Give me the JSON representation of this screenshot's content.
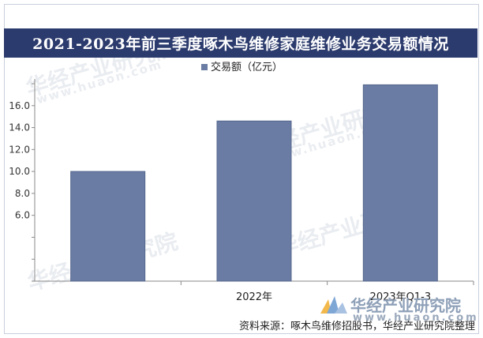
{
  "title": "2021-2023年前三季度啄木鸟维修家庭维修业务交易额情况",
  "watermark": {
    "brand": "华经产业研究院",
    "url": "www.huaon.com"
  },
  "logo": {
    "name": "华经产业研究院",
    "url": "www.huaon.com"
  },
  "source": "资料来源：啄木鸟维修招股书，华经产业研究院整理",
  "colors": {
    "title_bg": "#2c3b6d",
    "bar": "#6a7ca3",
    "bar_edge": "#55678d"
  },
  "chart_data": {
    "type": "bar",
    "categories": [
      "",
      "2022年",
      "2023年Q1-3"
    ],
    "series": [
      {
        "name": "交易额（亿元）",
        "values": [
          10.0,
          14.6,
          17.9
        ]
      }
    ],
    "title": "2021-2023年前三季度啄木鸟维修家庭维修业务交易额情况",
    "xlabel": "",
    "ylabel": "",
    "ylim": [
      0,
      18
    ],
    "yticks": [
      "",
      "",
      "",
      "6.0",
      "8.0",
      "10.0",
      "12.0",
      "14.0",
      "16.0",
      ""
    ],
    "ytick_values": [
      0,
      2,
      4,
      6,
      8,
      10,
      12,
      14,
      16,
      18
    ],
    "grid": false,
    "legend": "top-center"
  }
}
